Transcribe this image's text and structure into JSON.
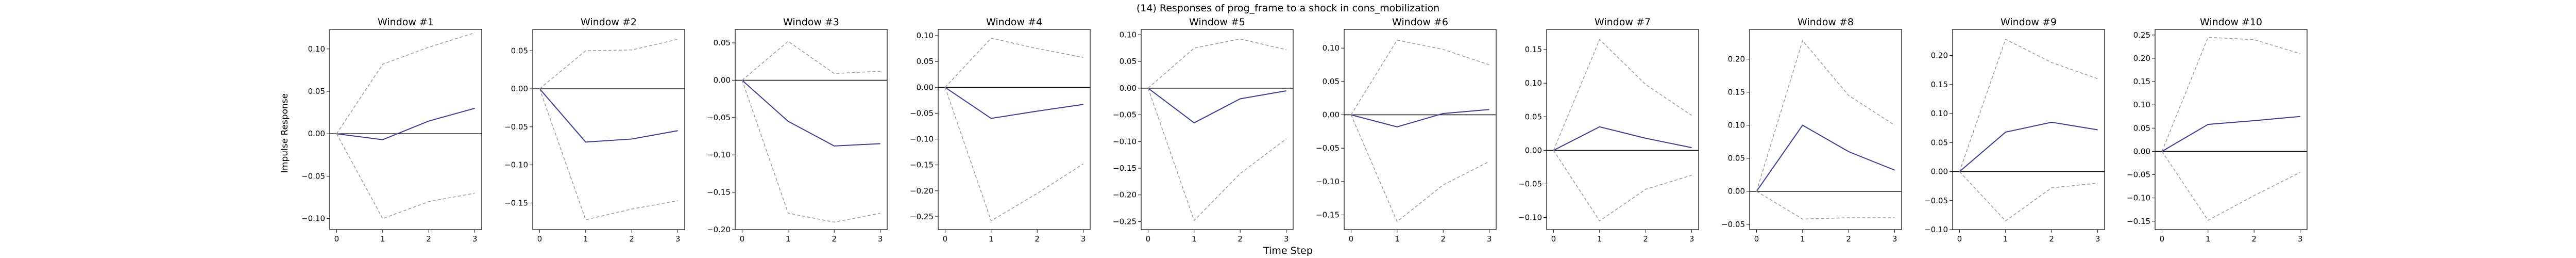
{
  "figure": {
    "suptitle": "(14) Responses of prog_frame to a shock in cons_mobilization",
    "xlabel": "Time Step",
    "ylabel": "Impulse Response"
  },
  "colors": {
    "response_line": "#3b3b8f",
    "band_line": "#999999",
    "zero_line": "#000000",
    "axes": "#000000"
  },
  "chart_data": [
    {
      "type": "line",
      "title": "Window #1",
      "x": [
        0,
        1,
        2,
        3
      ],
      "xticks": [
        "0",
        "1",
        "2",
        "3"
      ],
      "ylim": [
        -0.113,
        0.123
      ],
      "yticks": [
        -0.1,
        -0.05,
        0.0,
        0.05,
        0.1
      ],
      "yticklabels": [
        "−0.10",
        "−0.05",
        "0.00",
        "0.05",
        "0.10"
      ],
      "series": [
        {
          "role": "response",
          "values": [
            0.0,
            -0.007,
            0.015,
            0.03
          ]
        },
        {
          "role": "upper",
          "values": [
            0.0,
            0.082,
            0.102,
            0.119
          ]
        },
        {
          "role": "lower",
          "values": [
            0.0,
            -0.1,
            -0.08,
            -0.07
          ]
        }
      ]
    },
    {
      "type": "line",
      "title": "Window #2",
      "x": [
        0,
        1,
        2,
        3
      ],
      "xticks": [
        "0",
        "1",
        "2",
        "3"
      ],
      "ylim": [
        -0.185,
        0.078
      ],
      "yticks": [
        -0.15,
        -0.1,
        -0.05,
        0.0,
        0.05
      ],
      "yticklabels": [
        "−0.15",
        "−0.10",
        "−0.05",
        "0.00",
        "0.05"
      ],
      "series": [
        {
          "role": "response",
          "values": [
            0.0,
            -0.07,
            -0.066,
            -0.055
          ]
        },
        {
          "role": "upper",
          "values": [
            0.0,
            0.05,
            0.051,
            0.065
          ]
        },
        {
          "role": "lower",
          "values": [
            0.0,
            -0.172,
            -0.158,
            -0.147
          ]
        }
      ]
    },
    {
      "type": "line",
      "title": "Window #3",
      "x": [
        0,
        1,
        2,
        3
      ],
      "xticks": [
        "0",
        "1",
        "2",
        "3"
      ],
      "ylim": [
        -0.2,
        0.068
      ],
      "yticks": [
        -0.2,
        -0.15,
        -0.1,
        -0.05,
        0.0,
        0.05
      ],
      "yticklabels": [
        "−0.20",
        "−0.15",
        "−0.10",
        "−0.05",
        "0.00",
        "0.05"
      ],
      "series": [
        {
          "role": "response",
          "values": [
            0.0,
            -0.055,
            -0.088,
            -0.085
          ]
        },
        {
          "role": "upper",
          "values": [
            0.0,
            0.052,
            0.009,
            0.012
          ]
        },
        {
          "role": "lower",
          "values": [
            0.0,
            -0.178,
            -0.19,
            -0.178
          ]
        }
      ]
    },
    {
      "type": "line",
      "title": "Window #4",
      "x": [
        0,
        1,
        2,
        3
      ],
      "xticks": [
        "0",
        "1",
        "2",
        "3"
      ],
      "ylim": [
        -0.275,
        0.112
      ],
      "yticks": [
        -0.25,
        -0.2,
        -0.15,
        -0.1,
        -0.05,
        0.0,
        0.05,
        0.1
      ],
      "yticklabels": [
        "−0.25",
        "−0.20",
        "−0.15",
        "−0.10",
        "−0.05",
        "0.00",
        "0.05",
        "0.10"
      ],
      "series": [
        {
          "role": "response",
          "values": [
            0.0,
            -0.06,
            -0.046,
            -0.033
          ]
        },
        {
          "role": "upper",
          "values": [
            0.0,
            0.095,
            0.075,
            0.058
          ]
        },
        {
          "role": "lower",
          "values": [
            0.0,
            -0.258,
            -0.205,
            -0.148
          ]
        }
      ]
    },
    {
      "type": "line",
      "title": "Window #5",
      "x": [
        0,
        1,
        2,
        3
      ],
      "xticks": [
        "0",
        "1",
        "2",
        "3"
      ],
      "ylim": [
        -0.265,
        0.11
      ],
      "yticks": [
        -0.25,
        -0.2,
        -0.15,
        -0.1,
        -0.05,
        0.0,
        0.05,
        0.1
      ],
      "yticklabels": [
        "−0.25",
        "−0.20",
        "−0.15",
        "−0.10",
        "−0.05",
        "0.00",
        "0.05",
        "0.10"
      ],
      "series": [
        {
          "role": "response",
          "values": [
            0.0,
            -0.065,
            -0.02,
            -0.005
          ]
        },
        {
          "role": "upper",
          "values": [
            0.0,
            0.075,
            0.092,
            0.072
          ]
        },
        {
          "role": "lower",
          "values": [
            0.0,
            -0.248,
            -0.16,
            -0.095
          ]
        }
      ]
    },
    {
      "type": "line",
      "title": "Window #6",
      "x": [
        0,
        1,
        2,
        3
      ],
      "xticks": [
        "0",
        "1",
        "2",
        "3"
      ],
      "ylim": [
        -0.172,
        0.128
      ],
      "yticks": [
        -0.15,
        -0.1,
        -0.05,
        0.0,
        0.05,
        0.1
      ],
      "yticklabels": [
        "−0.15",
        "−0.10",
        "−0.05",
        "0.00",
        "0.05",
        "0.10"
      ],
      "series": [
        {
          "role": "response",
          "values": [
            0.0,
            -0.018,
            0.002,
            0.008
          ]
        },
        {
          "role": "upper",
          "values": [
            0.0,
            0.112,
            0.098,
            0.075
          ]
        },
        {
          "role": "lower",
          "values": [
            0.0,
            -0.16,
            -0.105,
            -0.07
          ]
        }
      ]
    },
    {
      "type": "line",
      "title": "Window #7",
      "x": [
        0,
        1,
        2,
        3
      ],
      "xticks": [
        "0",
        "1",
        "2",
        "3"
      ],
      "ylim": [
        -0.118,
        0.18
      ],
      "yticks": [
        -0.1,
        -0.05,
        0.0,
        0.05,
        0.1,
        0.15
      ],
      "yticklabels": [
        "−0.10",
        "−0.05",
        "0.00",
        "0.05",
        "0.10",
        "0.15"
      ],
      "series": [
        {
          "role": "response",
          "values": [
            0.0,
            0.035,
            0.018,
            0.004
          ]
        },
        {
          "role": "upper",
          "values": [
            0.0,
            0.165,
            0.098,
            0.052
          ]
        },
        {
          "role": "lower",
          "values": [
            0.0,
            -0.105,
            -0.058,
            -0.037
          ]
        }
      ]
    },
    {
      "type": "line",
      "title": "Window #8",
      "x": [
        0,
        1,
        2,
        3
      ],
      "xticks": [
        "0",
        "1",
        "2",
        "3"
      ],
      "ylim": [
        -0.058,
        0.245
      ],
      "yticks": [
        -0.05,
        0.0,
        0.05,
        0.1,
        0.15,
        0.2
      ],
      "yticklabels": [
        "−0.05",
        "0.00",
        "0.05",
        "0.10",
        "0.15",
        "0.20"
      ],
      "series": [
        {
          "role": "response",
          "values": [
            0.0,
            0.1,
            0.06,
            0.032
          ]
        },
        {
          "role": "upper",
          "values": [
            0.0,
            0.228,
            0.145,
            0.1
          ]
        },
        {
          "role": "lower",
          "values": [
            0.0,
            -0.042,
            -0.04,
            -0.04
          ]
        }
      ]
    },
    {
      "type": "line",
      "title": "Window #9",
      "x": [
        0,
        1,
        2,
        3
      ],
      "xticks": [
        "0",
        "1",
        "2",
        "3"
      ],
      "ylim": [
        -0.1,
        0.245
      ],
      "yticks": [
        -0.1,
        -0.05,
        0.0,
        0.05,
        0.1,
        0.15,
        0.2
      ],
      "yticklabels": [
        "−0.10",
        "−0.05",
        "0.00",
        "0.05",
        "0.10",
        "0.15",
        "0.20"
      ],
      "series": [
        {
          "role": "response",
          "values": [
            0.0,
            0.068,
            0.085,
            0.072
          ]
        },
        {
          "role": "upper",
          "values": [
            0.0,
            0.228,
            0.188,
            0.16
          ]
        },
        {
          "role": "lower",
          "values": [
            0.0,
            -0.085,
            -0.028,
            -0.02
          ]
        }
      ]
    },
    {
      "type": "line",
      "title": "Window #10",
      "x": [
        0,
        1,
        2,
        3
      ],
      "xticks": [
        "0",
        "1",
        "2",
        "3"
      ],
      "ylim": [
        -0.168,
        0.262
      ],
      "yticks": [
        -0.15,
        -0.1,
        -0.05,
        0.0,
        0.05,
        0.1,
        0.15,
        0.2,
        0.25
      ],
      "yticklabels": [
        "−0.15",
        "−0.10",
        "−0.05",
        "0.00",
        "0.05",
        "0.10",
        "0.15",
        "0.20",
        "0.25"
      ],
      "series": [
        {
          "role": "response",
          "values": [
            0.0,
            0.058,
            0.066,
            0.075
          ]
        },
        {
          "role": "upper",
          "values": [
            0.0,
            0.245,
            0.24,
            0.21
          ]
        },
        {
          "role": "lower",
          "values": [
            0.0,
            -0.148,
            -0.095,
            -0.045
          ]
        }
      ]
    }
  ]
}
